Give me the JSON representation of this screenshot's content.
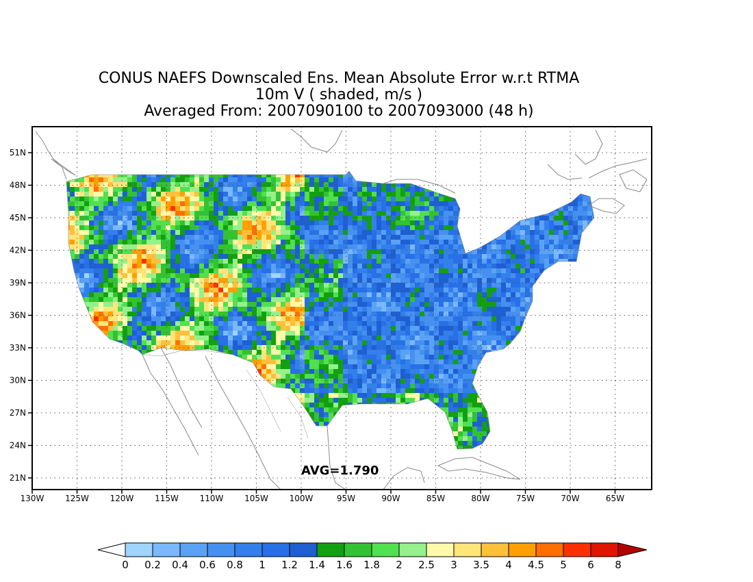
{
  "title": {
    "line1": "CONUS NAEFS Downscaled Ens. Mean Absolute Error w.r.t RTMA",
    "line2": "10m V ( shaded, m/s )",
    "line3": "Averaged From: 2007090100 to 2007093000 (48 h)"
  },
  "map": {
    "lat_labels": [
      "51N",
      "48N",
      "45N",
      "42N",
      "39N",
      "36N",
      "33N",
      "30N",
      "27N",
      "24N",
      "21N"
    ],
    "lon_labels": [
      "130W",
      "125W",
      "120W",
      "115W",
      "110W",
      "105W",
      "100W",
      "95W",
      "90W",
      "85W",
      "80W",
      "75W",
      "70W",
      "65W"
    ],
    "avg_label": "AVG=1.790",
    "colors": {
      "land_base": "#2a6fe0",
      "frame": "#000000",
      "grid": "#555555",
      "coast": "#888888"
    }
  },
  "colorbar": {
    "labels": [
      "0",
      "0.2",
      "0.4",
      "0.6",
      "0.8",
      "1",
      "1.2",
      "1.4",
      "1.6",
      "1.8",
      "2",
      "2.5",
      "3",
      "3.5",
      "4",
      "4.5",
      "5",
      "6",
      "8"
    ],
    "colors": [
      "#9fd4ff",
      "#7ab8ff",
      "#5aa2f5",
      "#4690f0",
      "#3380eb",
      "#2870e6",
      "#1e5fd2",
      "#13a010",
      "#33c233",
      "#50e050",
      "#96f08c",
      "#fffaaa",
      "#ffe57a",
      "#ffc03c",
      "#ffa000",
      "#ff6e00",
      "#ff3000",
      "#e01400",
      "#b40000"
    ],
    "under_color": "#ffffff",
    "over_color": "#b40000"
  }
}
